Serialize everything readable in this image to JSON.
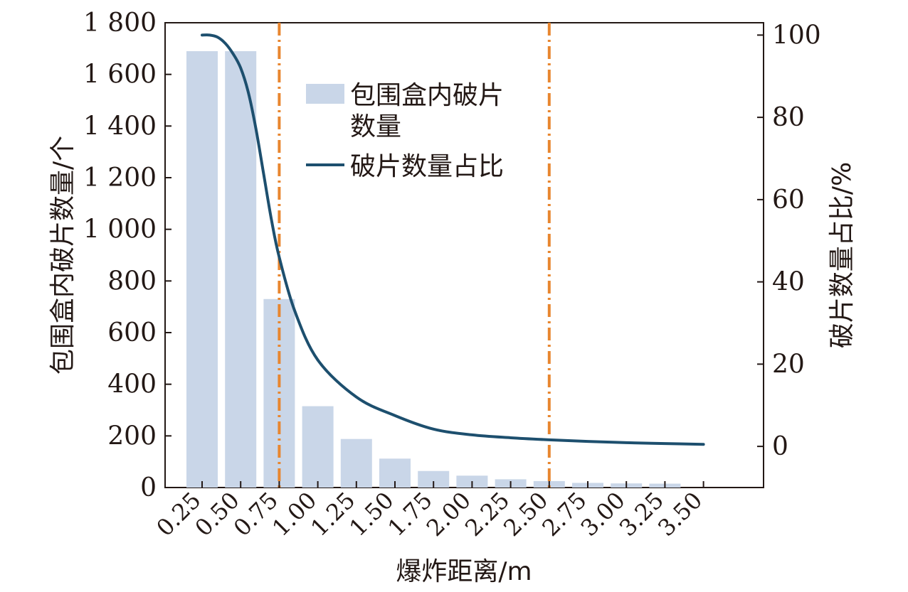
{
  "chart_data": {
    "type": "bar",
    "xlabel": "爆炸距离/m",
    "ylabel": "包围盒内破片数量/个",
    "y2label": "破片数量占比/%",
    "categories": [
      "0.25",
      "0.50",
      "0.75",
      "1.00",
      "1.25",
      "1.50",
      "1.75",
      "2.00",
      "2.25",
      "2.50",
      "2.75",
      "3.00",
      "3.25",
      "3.50"
    ],
    "ylim": [
      0,
      1800
    ],
    "y_ticks": [
      0,
      200,
      400,
      600,
      800,
      1000,
      1200,
      1400,
      1600,
      1800
    ],
    "y_tick_labels": [
      "0",
      "200",
      "400",
      "600",
      "800",
      "1 000",
      "1 200",
      "1 400",
      "1 600",
      "1 800"
    ],
    "y2lim": [
      -10,
      103
    ],
    "y2_ticks": [
      0,
      20,
      40,
      60,
      80,
      100
    ],
    "y2_tick_labels": [
      "0",
      "20",
      "40",
      "60",
      "80",
      "100"
    ],
    "series": [
      {
        "name": "包围盒内破片数量",
        "type": "bar",
        "axis": "left",
        "values": [
          1690,
          1690,
          730,
          315,
          188,
          112,
          64,
          46,
          32,
          25,
          18,
          16,
          15,
          0
        ]
      },
      {
        "name": "破片数量占比",
        "type": "line",
        "axis": "right",
        "x": [
          0.25,
          0.3,
          0.35,
          0.4,
          0.45,
          0.5,
          0.55,
          0.6,
          0.65,
          0.7,
          0.75,
          0.85,
          1.0,
          1.25,
          1.5,
          1.75,
          2.0,
          2.25,
          2.5,
          2.75,
          3.0,
          3.25,
          3.5
        ],
        "values": [
          100,
          100,
          99.5,
          98,
          95.5,
          92,
          86,
          77,
          66,
          55,
          46,
          33,
          21,
          12,
          7.5,
          4.2,
          2.8,
          2.1,
          1.6,
          1.2,
          0.9,
          0.7,
          0.5
        ]
      }
    ],
    "vlines": [
      0.75,
      2.5
    ],
    "legend": "top-center",
    "grid": false,
    "colors": {
      "bar": "#c9d6e8",
      "line": "#1d4f6e",
      "vline": "#e8862f",
      "axis": "#231815"
    }
  }
}
